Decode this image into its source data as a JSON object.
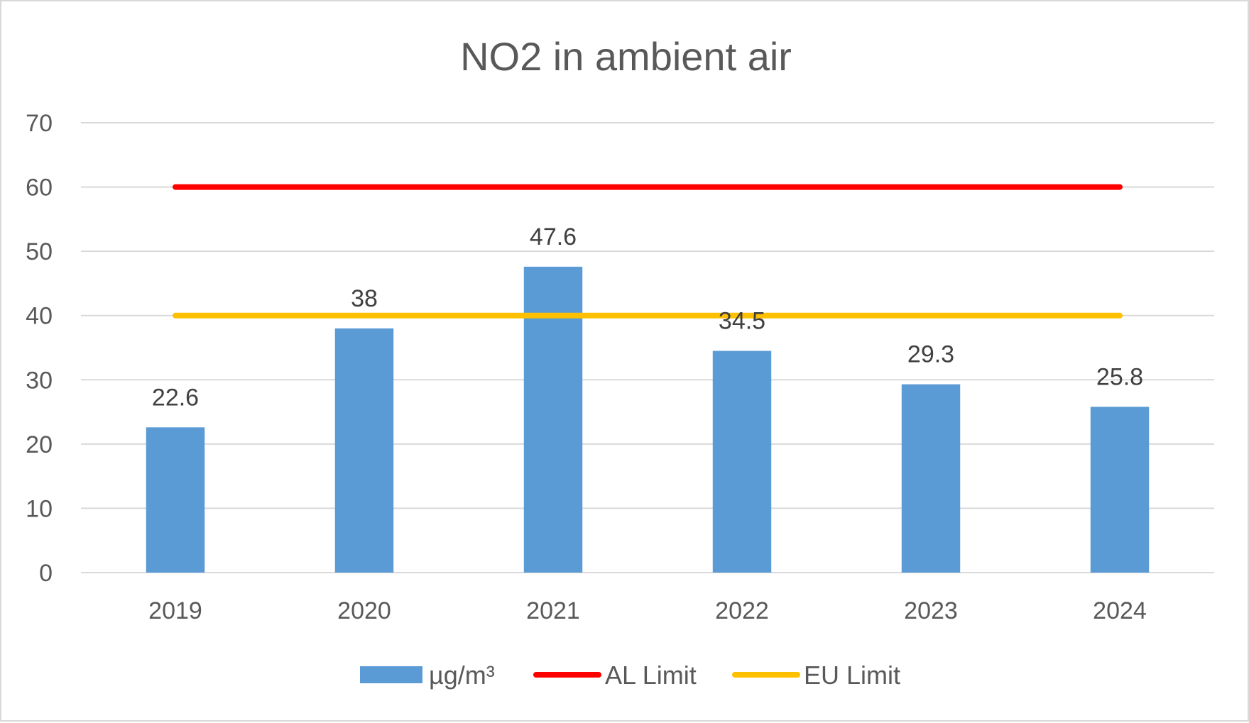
{
  "chart_data": {
    "type": "bar",
    "title": "NO2 in ambient air",
    "categories": [
      "2019",
      "2020",
      "2021",
      "2022",
      "2023",
      "2024"
    ],
    "series": [
      {
        "name": "µg/m³",
        "type": "bar",
        "color": "#5b9bd5",
        "values": [
          22.6,
          38,
          47.6,
          34.5,
          29.3,
          25.8
        ],
        "data_labels": [
          "22.6",
          "38",
          "47.6",
          "34.5",
          "29.3",
          "25.8"
        ]
      },
      {
        "name": "AL Limit",
        "type": "line",
        "color": "#ff0000",
        "values": [
          60,
          60,
          60,
          60,
          60,
          60
        ]
      },
      {
        "name": "EU Limit",
        "type": "line",
        "color": "#ffc000",
        "values": [
          40,
          40,
          40,
          40,
          40,
          40
        ]
      }
    ],
    "ylim": [
      0,
      70
    ],
    "yticks": [
      0,
      10,
      20,
      30,
      40,
      50,
      60,
      70
    ],
    "xlabel": "",
    "ylabel": "",
    "grid": true,
    "legend": "bottom-center"
  }
}
